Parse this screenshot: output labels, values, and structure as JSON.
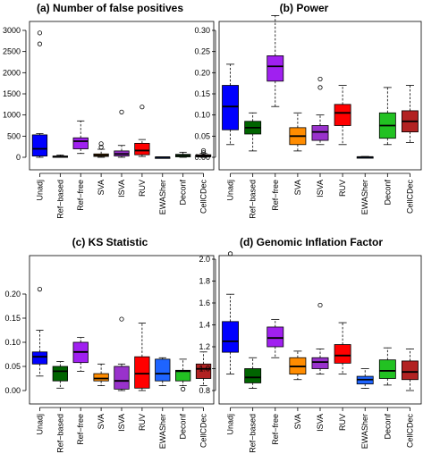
{
  "chart_data": [
    {
      "type": "box",
      "title": "(a) Number of false positives",
      "categories": [
        "Unadj",
        "Ref−based",
        "Ref−free",
        "SVA",
        "ISVA",
        "RUV",
        "EWASher",
        "Deconf",
        "CellCDec"
      ],
      "colors": [
        "#0000ff",
        "#006400",
        "#a020f0",
        "#ff8c00",
        "#9932cc",
        "#ff0000",
        "#1e64ff",
        "#22c122",
        "#b22222"
      ],
      "ylim": [
        0,
        3000
      ],
      "yticks": [
        0,
        500,
        1000,
        1500,
        2000,
        2500,
        3000
      ],
      "boxes": [
        {
          "min": 0,
          "q1": 30,
          "median": 200,
          "q3": 530,
          "max": 560,
          "outliers": [
            2680,
            2940
          ]
        },
        {
          "min": 0,
          "q1": 5,
          "median": 15,
          "q3": 30,
          "max": 55,
          "outliers": []
        },
        {
          "min": 90,
          "q1": 200,
          "median": 380,
          "q3": 460,
          "max": 860,
          "outliers": []
        },
        {
          "min": 0,
          "q1": 20,
          "median": 50,
          "q3": 80,
          "max": 190,
          "outliers": [
            240,
            320
          ]
        },
        {
          "min": 0,
          "q1": 30,
          "median": 80,
          "q3": 150,
          "max": 280,
          "outliers": [
            1070
          ]
        },
        {
          "min": 20,
          "q1": 60,
          "median": 160,
          "q3": 330,
          "max": 420,
          "outliers": [
            1190
          ]
        },
        {
          "min": 0,
          "q1": 0,
          "median": 2,
          "q3": 5,
          "max": 10,
          "outliers": []
        },
        {
          "min": 0,
          "q1": 10,
          "median": 40,
          "q3": 70,
          "max": 120,
          "outliers": []
        },
        {
          "min": 0,
          "q1": 10,
          "median": 30,
          "q3": 60,
          "max": 90,
          "outliers": [
            110,
            160
          ]
        }
      ]
    },
    {
      "type": "box",
      "title": "(b) Power",
      "categories": [
        "Unadj",
        "Ref−based",
        "Ref−free",
        "SVA",
        "ISVA",
        "RUV",
        "EWASher",
        "Deconf",
        "CellCDec"
      ],
      "colors": [
        "#0000ff",
        "#006400",
        "#a020f0",
        "#ff8c00",
        "#9932cc",
        "#ff0000",
        "#1e64ff",
        "#22c122",
        "#b22222"
      ],
      "ylim": [
        0,
        0.33
      ],
      "yticks": [
        "0.00",
        "0.05",
        "0.10",
        "0.15",
        "0.20",
        "0.25",
        "0.30"
      ],
      "boxes": [
        {
          "min": 0.03,
          "q1": 0.065,
          "median": 0.12,
          "q3": 0.17,
          "max": 0.22,
          "outliers": []
        },
        {
          "min": 0.015,
          "q1": 0.055,
          "median": 0.07,
          "q3": 0.085,
          "max": 0.105,
          "outliers": []
        },
        {
          "min": 0.12,
          "q1": 0.18,
          "median": 0.215,
          "q3": 0.24,
          "max": 0.335,
          "outliers": []
        },
        {
          "min": 0.015,
          "q1": 0.03,
          "median": 0.05,
          "q3": 0.07,
          "max": 0.105,
          "outliers": []
        },
        {
          "min": 0.03,
          "q1": 0.04,
          "median": 0.06,
          "q3": 0.075,
          "max": 0.1,
          "outliers": [
            0.165,
            0.185
          ]
        },
        {
          "min": 0.03,
          "q1": 0.075,
          "median": 0.105,
          "q3": 0.125,
          "max": 0.17,
          "outliers": []
        },
        {
          "min": 0,
          "q1": 0,
          "median": 0.0005,
          "q3": 0.001,
          "max": 0.002,
          "outliers": []
        },
        {
          "min": 0.03,
          "q1": 0.045,
          "median": 0.075,
          "q3": 0.105,
          "max": 0.165,
          "outliers": []
        },
        {
          "min": 0.035,
          "q1": 0.06,
          "median": 0.085,
          "q3": 0.11,
          "max": 0.17,
          "outliers": []
        }
      ]
    },
    {
      "type": "box",
      "title": "(c) KS Statistic",
      "categories": [
        "Unadj",
        "Ref−based",
        "Ref−free",
        "SVA",
        "ISVA",
        "RUV",
        "EWASher",
        "Deconf",
        "CellCDec"
      ],
      "colors": [
        "#0000ff",
        "#006400",
        "#a020f0",
        "#ff8c00",
        "#9932cc",
        "#ff0000",
        "#1e64ff",
        "#22c122",
        "#b22222"
      ],
      "ylim": [
        0,
        0.21
      ],
      "yticks": [
        "0.00",
        "0.05",
        "0.10",
        "0.15",
        "0.20"
      ],
      "boxes": [
        {
          "min": 0.03,
          "q1": 0.055,
          "median": 0.07,
          "q3": 0.08,
          "max": 0.125,
          "outliers": [
            0.21
          ]
        },
        {
          "min": 0.005,
          "q1": 0.02,
          "median": 0.04,
          "q3": 0.05,
          "max": 0.06,
          "outliers": []
        },
        {
          "min": 0.04,
          "q1": 0.058,
          "median": 0.08,
          "q3": 0.1,
          "max": 0.11,
          "outliers": []
        },
        {
          "min": 0.01,
          "q1": 0.02,
          "median": 0.025,
          "q3": 0.035,
          "max": 0.055,
          "outliers": []
        },
        {
          "min": 0,
          "q1": 0.003,
          "median": 0.02,
          "q3": 0.05,
          "max": 0.055,
          "outliers": [
            0.148
          ]
        },
        {
          "min": 0,
          "q1": 0.005,
          "median": 0.035,
          "q3": 0.07,
          "max": 0.14,
          "outliers": []
        },
        {
          "min": 0.01,
          "q1": 0.02,
          "median": 0.035,
          "q3": 0.065,
          "max": 0.068,
          "outliers": []
        },
        {
          "min": 0.01,
          "q1": 0.02,
          "median": 0.04,
          "q3": 0.042,
          "max": 0.065,
          "outliers": [
            0.003
          ]
        },
        {
          "min": 0.01,
          "q1": 0.025,
          "median": 0.045,
          "q3": 0.055,
          "max": 0.08,
          "outliers": []
        }
      ]
    },
    {
      "type": "box",
      "title": "(d) Genomic Inflation Factor",
      "categories": [
        "Unadj",
        "Ref−based",
        "Ref−free",
        "SVA",
        "ISVA",
        "RUV",
        "EWASher",
        "Deconf",
        "CellCDec"
      ],
      "colors": [
        "#0000ff",
        "#006400",
        "#a020f0",
        "#ff8c00",
        "#9932cc",
        "#ff0000",
        "#1e64ff",
        "#22c122",
        "#b22222"
      ],
      "ylim": [
        0.8,
        2.05
      ],
      "yticks": [
        "0.8",
        "1.0",
        "1.2",
        "1.4",
        "1.6",
        "1.8",
        "2.0"
      ],
      "boxes": [
        {
          "min": 0.95,
          "q1": 1.15,
          "median": 1.25,
          "q3": 1.43,
          "max": 1.68,
          "outliers": [
            2.05
          ]
        },
        {
          "min": 0.82,
          "q1": 0.87,
          "median": 0.92,
          "q3": 1.0,
          "max": 1.1,
          "outliers": []
        },
        {
          "min": 1.1,
          "q1": 1.2,
          "median": 1.28,
          "q3": 1.38,
          "max": 1.45,
          "outliers": []
        },
        {
          "min": 0.9,
          "q1": 0.95,
          "median": 1.02,
          "q3": 1.1,
          "max": 1.16,
          "outliers": []
        },
        {
          "min": 0.95,
          "q1": 1.0,
          "median": 1.06,
          "q3": 1.1,
          "max": 1.18,
          "outliers": [
            1.58
          ]
        },
        {
          "min": 0.95,
          "q1": 1.05,
          "median": 1.12,
          "q3": 1.22,
          "max": 1.42,
          "outliers": []
        },
        {
          "min": 0.82,
          "q1": 0.86,
          "median": 0.9,
          "q3": 0.93,
          "max": 1.0,
          "outliers": []
        },
        {
          "min": 0.85,
          "q1": 0.91,
          "median": 0.98,
          "q3": 1.08,
          "max": 1.19,
          "outliers": []
        },
        {
          "min": 0.8,
          "q1": 0.9,
          "median": 0.97,
          "q3": 1.07,
          "max": 1.18,
          "outliers": []
        }
      ]
    }
  ]
}
